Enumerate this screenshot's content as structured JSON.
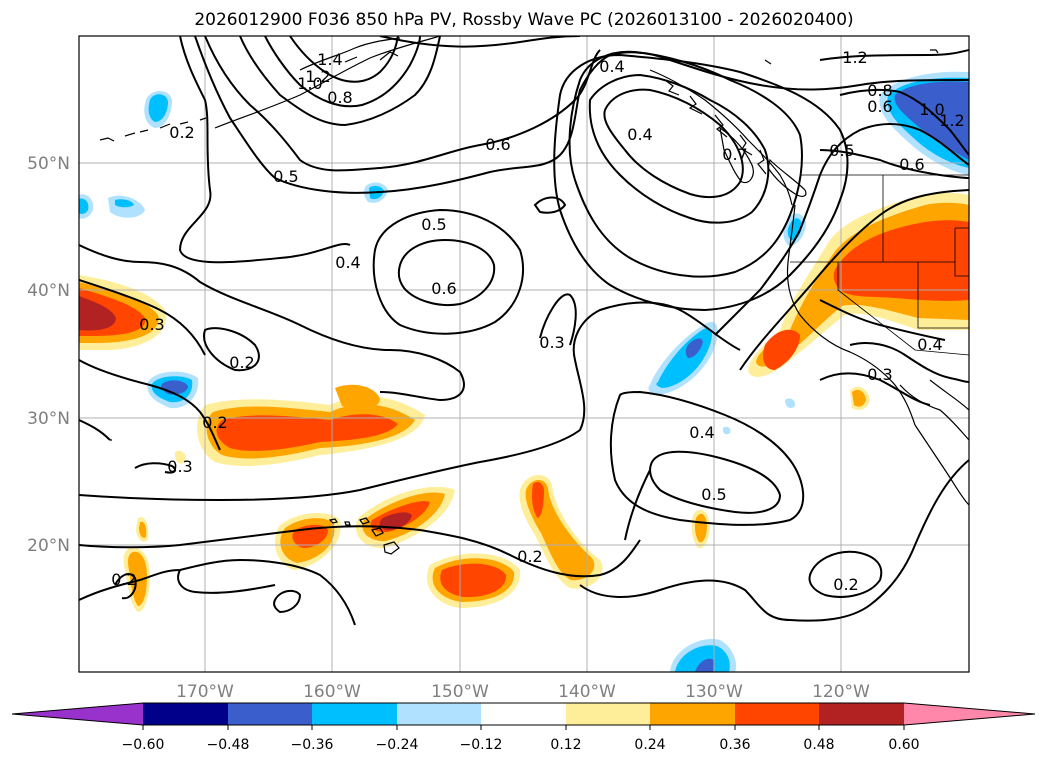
{
  "title": "2026012900 F036 850 hPa PV, Rossby Wave PC (2026013100 - 2026020400)",
  "lat_labels": [
    "50°N",
    "40°N",
    "30°N",
    "20°N"
  ],
  "lon_labels": [
    "170°W",
    "160°W",
    "150°W",
    "140°W",
    "130°W",
    "120°W"
  ],
  "colorbar": {
    "ticks": [
      "−0.60",
      "−0.48",
      "−0.36",
      "−0.24",
      "−0.12",
      "0.12",
      "0.24",
      "0.36",
      "0.48",
      "0.60"
    ],
    "colors": [
      "#9932cc",
      "#00008b",
      "#3a5fcd",
      "#00bfff",
      "#b0e2ff",
      "#ffffff",
      "#ffee99",
      "#ffa500",
      "#ff4500",
      "#b22222",
      "#ff88aa"
    ]
  },
  "contour_labels": [
    "1.4",
    "1.2",
    "1.0",
    "0.8",
    "0.2",
    "0.5",
    "0.6",
    "0.4",
    "0.5",
    "0.4",
    "0.6",
    "0.3",
    "0.2",
    "0.2",
    "0.3",
    "0.3",
    "0.2",
    "0.2",
    "0.4",
    "0.5",
    "0.2",
    "0.4",
    "0.7",
    "0.6",
    "0.8",
    "1.2",
    "1.0",
    "1.2",
    "0.5",
    "0.4",
    "0.3",
    "0.6"
  ]
}
